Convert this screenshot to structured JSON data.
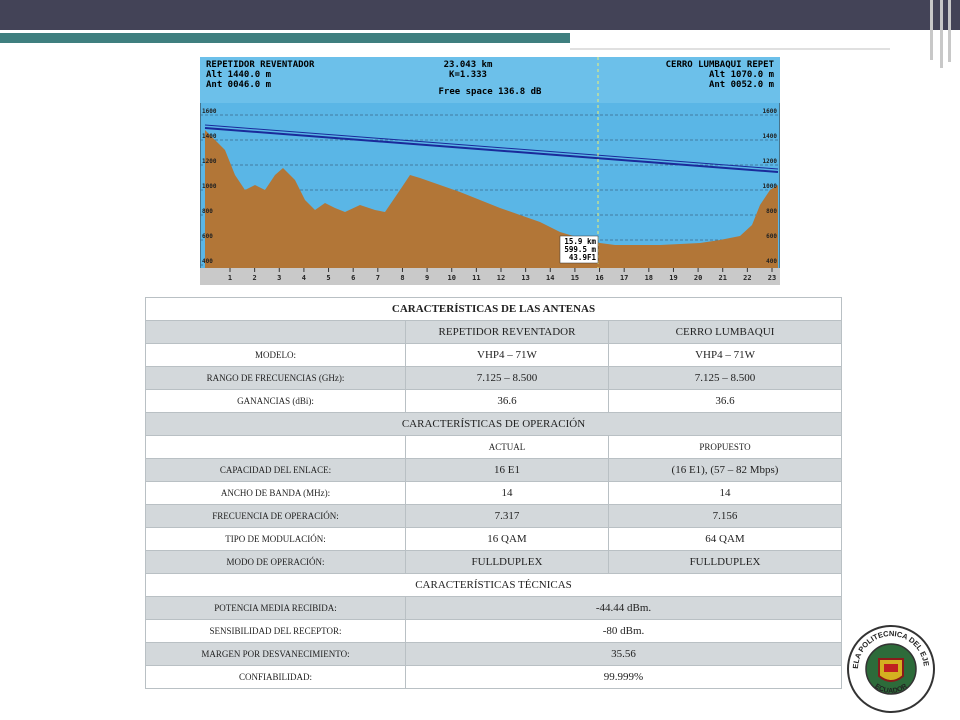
{
  "profile": {
    "site_a": {
      "name": "REPETIDOR REVENTADOR",
      "alt": "Alt 1440.0 m",
      "ant": "Ant 0046.0 m"
    },
    "site_b": {
      "name": "CERRO LUMBAQUI REPET",
      "alt": "Alt 1070.0 m",
      "ant": "Ant 0052.0 m"
    },
    "distance": "23.043 km",
    "k_factor": "K=1.333",
    "free_space": "Free space 136.8 dB",
    "elevation_labels": [
      "400",
      "600",
      "800",
      "1000",
      "1200",
      "1400",
      "1600"
    ],
    "distance_labels": [
      "1",
      "2",
      "3",
      "4",
      "5",
      "6",
      "7",
      "8",
      "9",
      "10",
      "11",
      "12",
      "13",
      "14",
      "15",
      "16",
      "17",
      "18",
      "19",
      "20",
      "21",
      "22",
      "23"
    ],
    "cursor": [
      "15.9 km",
      "599.5 m",
      "43.9F1"
    ]
  },
  "table": {
    "sections": [
      {
        "title": "CARACTERÍSTICAS DE LAS ANTENAS",
        "header": [
          "REPETIDOR REVENTADOR",
          "CERRO LUMBAQUI"
        ],
        "rows": [
          [
            "MODELO:",
            "VHP4 – 71W",
            "VHP4 – 71W"
          ],
          [
            "RANGO DE FRECUENCIAS (GHz):",
            "7.125 – 8.500",
            "7.125 – 8.500"
          ],
          [
            "GANANCIAS (dBi):",
            "36.6",
            "36.6"
          ]
        ]
      },
      {
        "title": "CARACTERÍSTICAS DE OPERACIÓN",
        "header": [
          "ACTUAL",
          "PROPUESTO"
        ],
        "rows": [
          [
            "CAPACIDAD DEL ENLACE:",
            "16 E1",
            "(16 E1), (57 – 82 Mbps)"
          ],
          [
            "ANCHO DE BANDA (MHz):",
            "14",
            "14"
          ],
          [
            "FRECUENCIA DE OPERACIÓN:",
            "7.317",
            "7.156"
          ],
          [
            "TIPO DE MODULACIÓN:",
            "16 QAM",
            "64 QAM"
          ],
          [
            "MODO DE OPERACIÓN:",
            "FULLDUPLEX",
            "FULLDUPLEX"
          ]
        ]
      },
      {
        "title": "CARACTERÍSTICAS TÉCNICAS",
        "rows": [
          [
            "POTENCIA MEDIA RECIBIDA:",
            "-44.44 dBm."
          ],
          [
            "SENSIBILIDAD DEL RECEPTOR:",
            "-80 dBm."
          ],
          [
            "MARGEN POR DESVANECIMIENTO:",
            "35.56"
          ],
          [
            "CONFIABILIDAD:",
            "99.999%"
          ]
        ]
      }
    ]
  },
  "logo": {
    "ring_text": "ESCUELA POLITECNICA DEL EJERCITO",
    "country": "ECUADOR"
  }
}
